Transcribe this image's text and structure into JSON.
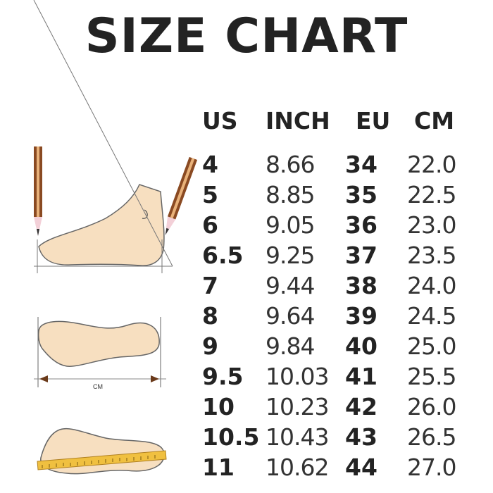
{
  "title": "SIZE CHART",
  "headers": [
    "US",
    "INCH",
    "EU",
    "CM"
  ],
  "rows": [
    [
      "4",
      "8.66",
      "34",
      "22.0"
    ],
    [
      "5",
      "8.85",
      "35",
      "22.5"
    ],
    [
      "6",
      "9.05",
      "36",
      "23.0"
    ],
    [
      "6.5",
      "9.25",
      "37",
      "23.5"
    ],
    [
      "7",
      "9.44",
      "38",
      "24.0"
    ],
    [
      "8",
      "9.64",
      "39",
      "24.5"
    ],
    [
      "9",
      "9.84",
      "40",
      "25.0"
    ],
    [
      "9.5",
      "10.03",
      "41",
      "25.5"
    ],
    [
      "10",
      "10.23",
      "42",
      "26.0"
    ],
    [
      "10.5",
      "10.43",
      "43",
      "26.5"
    ],
    [
      "11",
      "10.62",
      "44",
      "27.0"
    ]
  ],
  "illustration": {
    "measure_label": "CM",
    "skin_color": "#f7dfc0",
    "pencil_color": "#8a4a22",
    "ruler_color": "#f0c040"
  }
}
